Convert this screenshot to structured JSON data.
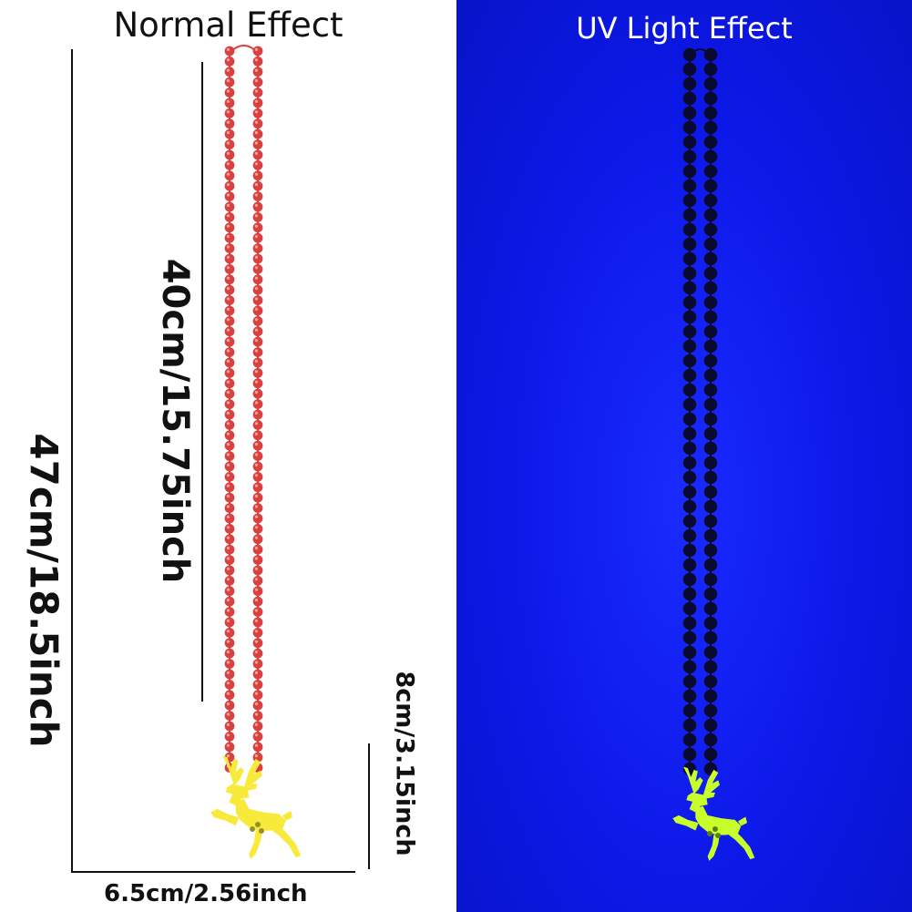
{
  "left_panel": {
    "title": "Normal Effect",
    "bead_color": "#d9403f",
    "pendant_color": "#f7ea3a"
  },
  "right_panel": {
    "title": "UV Light Effect",
    "background_color": "#0c18e6",
    "bead_color": "#0a0a2e",
    "pendant_color": "#c8ff2a"
  },
  "dimensions": {
    "total_length": "47cm/18.5inch",
    "chain_length": "40cm/15.75inch",
    "pendant_height": "8cm/3.15inch",
    "pendant_width": "6.5cm/2.56inch"
  }
}
